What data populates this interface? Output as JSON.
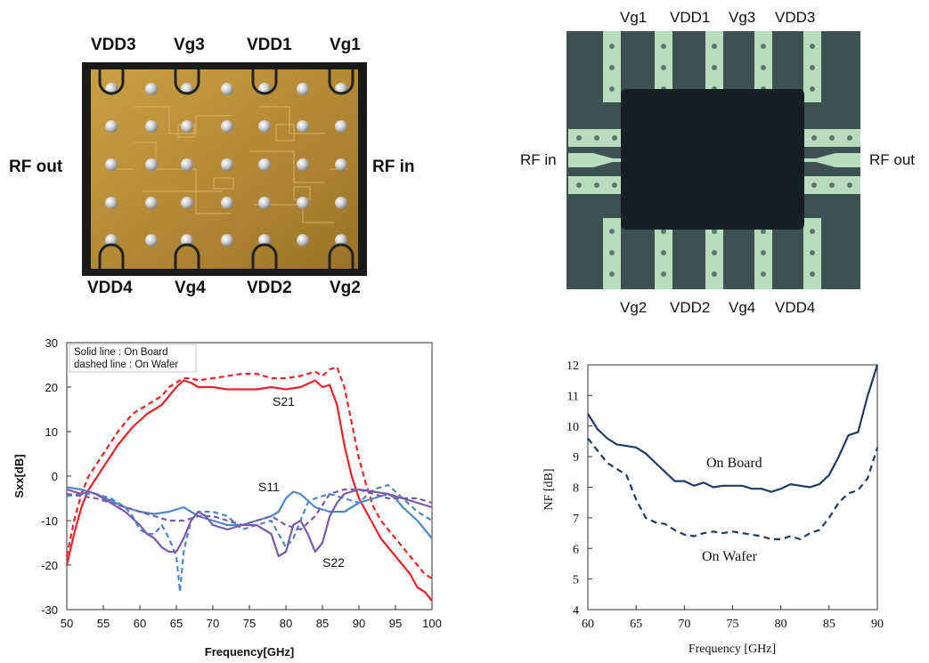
{
  "chip_left": {
    "pins_top": [
      "VDD3",
      "Vg3",
      "VDD1",
      "Vg1"
    ],
    "pins_bottom": [
      "VDD4",
      "Vg4",
      "VDD2",
      "Vg2"
    ],
    "port_left": "RF out",
    "port_right": "RF in"
  },
  "chip_right": {
    "pins_top": [
      "Vg1",
      "VDD1",
      "Vg3",
      "VDD3"
    ],
    "pins_bottom": [
      "Vg2",
      "VDD2",
      "Vg4",
      "VDD4"
    ],
    "port_left": "RF in",
    "port_right": "RF out"
  },
  "colors": {
    "board_red": "#e8232a",
    "blue": "#4f86c6",
    "purple": "#7b5aa6",
    "navy": "#1f3b63"
  },
  "chart_data": [
    {
      "type": "line",
      "xlabel": "Frequency[GHz]",
      "ylabel": "Sxx[dB]",
      "xlim": [
        50,
        100
      ],
      "ylim": [
        -30,
        30
      ],
      "x_ticks": [
        "50",
        "55",
        "60",
        "65",
        "70",
        "75",
        "80",
        "85",
        "90",
        "95",
        "100"
      ],
      "y_ticks": [
        "30",
        "20",
        "10",
        "0",
        "-10",
        "-20",
        "-30"
      ],
      "legend_lines": [
        "Solid line : On Board",
        "dashed line : On Wafer"
      ],
      "legend_position": "top-left",
      "annotations": [
        "S21",
        "S11",
        "S22"
      ],
      "series": [
        {
          "name": "S21",
          "style": "solid",
          "color": "red",
          "x": [
            50,
            51,
            52,
            53,
            55,
            57,
            59,
            61,
            63,
            64,
            65,
            66,
            67,
            68,
            70,
            72,
            74,
            76,
            78,
            80,
            82,
            84,
            85,
            86,
            87,
            88,
            89,
            90,
            91,
            92,
            93,
            94,
            95,
            96,
            97,
            98,
            99,
            100
          ],
          "y": [
            -20,
            -13,
            -7,
            -3,
            2,
            7,
            11,
            14,
            16,
            18,
            20,
            21.5,
            21,
            20,
            20,
            19.5,
            19.5,
            19.5,
            20,
            19.5,
            20,
            21.5,
            20,
            20.5,
            16,
            7,
            0,
            -5,
            -8,
            -11,
            -14,
            -16,
            -18,
            -20,
            -22,
            -25,
            -26,
            -28
          ]
        },
        {
          "name": "S21",
          "style": "dashed",
          "color": "red",
          "x": [
            50,
            51,
            52,
            53,
            55,
            57,
            59,
            61,
            63,
            64,
            65,
            66,
            67,
            68,
            70,
            72,
            74,
            76,
            78,
            80,
            82,
            84,
            85,
            86,
            87,
            88,
            89,
            90,
            91,
            92,
            93,
            94,
            95,
            96,
            97,
            98,
            99,
            100
          ],
          "y": [
            -18,
            -10,
            -4,
            0,
            5,
            10,
            14,
            16,
            18,
            20,
            21,
            22,
            22,
            21.5,
            22,
            22.5,
            23,
            23,
            22,
            22,
            22.5,
            23.5,
            22.5,
            24,
            24.5,
            20,
            12,
            4,
            -2,
            -7,
            -10,
            -12,
            -14,
            -16,
            -18,
            -20,
            -22,
            -23
          ]
        },
        {
          "name": "S11",
          "style": "solid",
          "color": "blue",
          "x": [
            50,
            52,
            54,
            56,
            58,
            60,
            62,
            64,
            66,
            67,
            68,
            70,
            72,
            74,
            76,
            78,
            79,
            80,
            81,
            82,
            83,
            84,
            86,
            88,
            90,
            92,
            94,
            95,
            96,
            98,
            100
          ],
          "y": [
            -2.5,
            -3,
            -4,
            -5.5,
            -7,
            -8,
            -8.5,
            -8,
            -7,
            -8,
            -9,
            -10,
            -11,
            -11,
            -10,
            -9,
            -8,
            -5,
            -3.5,
            -4,
            -5.5,
            -7,
            -8,
            -8,
            -6,
            -5,
            -4,
            -5,
            -7,
            -10,
            -14
          ]
        },
        {
          "name": "S11",
          "style": "dashed",
          "color": "blue",
          "x": [
            50,
            52,
            54,
            56,
            58,
            59,
            60,
            61,
            62,
            63,
            64,
            65,
            65.5,
            66,
            67,
            68,
            70,
            72,
            74,
            76,
            78,
            79,
            80,
            81,
            82,
            83,
            84,
            86,
            88,
            90,
            92,
            94,
            96,
            98,
            100
          ],
          "y": [
            -4.5,
            -4,
            -4,
            -5,
            -7,
            -9,
            -12,
            -13,
            -13,
            -11,
            -14,
            -18,
            -26,
            -17,
            -10,
            -8,
            -8,
            -9,
            -12,
            -11,
            -10,
            -13,
            -16,
            -14,
            -10,
            -6,
            -5,
            -4,
            -5,
            -6,
            -3,
            -2,
            -5,
            -8,
            -10
          ]
        },
        {
          "name": "S22",
          "style": "solid",
          "color": "purple",
          "x": [
            50,
            52,
            53,
            54,
            56,
            58,
            60,
            61,
            62,
            63,
            64,
            65,
            66,
            67,
            68,
            69,
            70,
            72,
            74,
            76,
            78,
            79,
            80,
            81,
            82,
            83,
            84,
            85,
            86,
            87,
            88,
            90,
            92,
            94,
            96,
            98,
            100
          ],
          "y": [
            -3,
            -4,
            -3.5,
            -4,
            -6,
            -8,
            -11,
            -13,
            -14,
            -16,
            -17,
            -17,
            -14,
            -10,
            -8,
            -9,
            -11,
            -12,
            -11,
            -11,
            -13,
            -18,
            -17,
            -11,
            -10,
            -13,
            -17,
            -15,
            -9,
            -6,
            -4,
            -3,
            -3.5,
            -4,
            -5,
            -6,
            -7
          ]
        },
        {
          "name": "S22",
          "style": "dashed",
          "color": "purple",
          "x": [
            50,
            52,
            54,
            56,
            58,
            60,
            62,
            64,
            66,
            68,
            70,
            72,
            74,
            76,
            78,
            80,
            82,
            84,
            86,
            88,
            90,
            92,
            94,
            96,
            98,
            100
          ],
          "y": [
            -4,
            -4.5,
            -5,
            -6,
            -7,
            -8,
            -9,
            -10,
            -10,
            -9,
            -9,
            -10,
            -11,
            -10,
            -9,
            -11,
            -12,
            -9,
            -4,
            -3,
            -3,
            -4,
            -5,
            -5,
            -5,
            -6
          ]
        }
      ]
    },
    {
      "type": "line",
      "xlabel": "Frequency [GHz]",
      "ylabel": "NF [dB]",
      "xlim": [
        60,
        90
      ],
      "ylim": [
        4,
        12
      ],
      "x_ticks": [
        "60",
        "65",
        "70",
        "75",
        "80",
        "85",
        "90"
      ],
      "y_ticks": [
        "12",
        "11",
        "10",
        "9",
        "8",
        "7",
        "6",
        "5",
        "4"
      ],
      "annotations": [
        "On Board",
        "On Wafer"
      ],
      "series": [
        {
          "name": "On Board",
          "style": "solid",
          "color": "navy",
          "x": [
            60,
            61,
            62,
            63,
            64,
            65,
            66,
            67,
            68,
            69,
            70,
            71,
            72,
            73,
            74,
            75,
            76,
            77,
            78,
            79,
            80,
            81,
            82,
            83,
            84,
            85,
            86,
            87,
            88,
            89,
            90
          ],
          "y": [
            10.4,
            9.9,
            9.6,
            9.4,
            9.35,
            9.3,
            9.1,
            8.8,
            8.5,
            8.2,
            8.2,
            8.05,
            8.15,
            8.0,
            8.05,
            8.05,
            8.05,
            7.95,
            7.95,
            7.85,
            7.95,
            8.1,
            8.05,
            8.0,
            8.1,
            8.4,
            9.0,
            9.7,
            9.8,
            11,
            12
          ]
        },
        {
          "name": "On Wafer",
          "style": "dashed",
          "color": "navy",
          "x": [
            60,
            61,
            62,
            63,
            64,
            65,
            66,
            67,
            68,
            69,
            70,
            71,
            72,
            73,
            74,
            75,
            76,
            77,
            78,
            79,
            80,
            81,
            82,
            83,
            84,
            85,
            86,
            87,
            88,
            89,
            90
          ],
          "y": [
            9.6,
            9.2,
            8.8,
            8.6,
            8.4,
            7.6,
            7.0,
            6.85,
            6.8,
            6.6,
            6.45,
            6.4,
            6.5,
            6.55,
            6.5,
            6.55,
            6.5,
            6.45,
            6.4,
            6.3,
            6.3,
            6.4,
            6.3,
            6.5,
            6.6,
            7.0,
            7.5,
            7.8,
            7.9,
            8.3,
            9.3
          ]
        }
      ]
    }
  ]
}
